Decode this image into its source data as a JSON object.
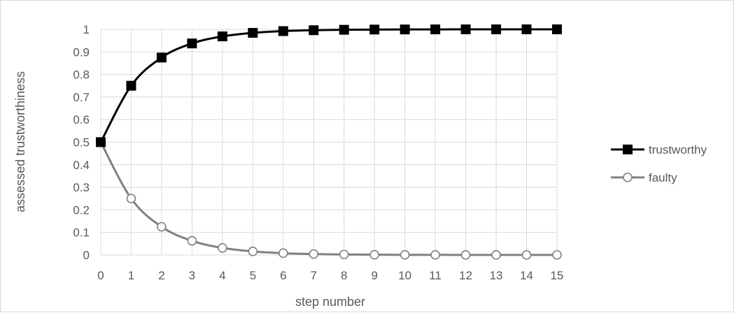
{
  "chart_data": {
    "type": "line",
    "title": "",
    "xlabel": "step number",
    "ylabel": "assessed trustworthiness",
    "x": [
      0,
      1,
      2,
      3,
      4,
      5,
      6,
      7,
      8,
      9,
      10,
      11,
      12,
      13,
      14,
      15
    ],
    "xlim": [
      0,
      15
    ],
    "ylim": [
      0,
      1
    ],
    "y_ticks": [
      0,
      0.1,
      0.2,
      0.3,
      0.4,
      0.5,
      0.6,
      0.7,
      0.8,
      0.9,
      1
    ],
    "grid": true,
    "legend_position": "right",
    "series": [
      {
        "name": "trustworthy",
        "color": "#000000",
        "marker": "filled-square",
        "values": [
          0.5,
          0.75,
          0.875,
          0.9375,
          0.96875,
          0.984375,
          0.9921875,
          0.99609375,
          0.998046875,
          0.9990234375,
          0.99951171875,
          0.999755859375,
          0.9998779296875,
          0.99993896484375,
          0.999969482421875,
          0.9999847412109375
        ]
      },
      {
        "name": "faulty",
        "color": "#808080",
        "marker": "hollow-circle",
        "values": [
          0.5,
          0.25,
          0.125,
          0.0625,
          0.03125,
          0.015625,
          0.0078125,
          0.00390625,
          0.001953125,
          0.0009765625,
          0.00048828125,
          0.000244140625,
          0.0001220703125,
          6.103515625e-05,
          3.0517578125e-05,
          1.52587890625e-05
        ]
      }
    ]
  }
}
